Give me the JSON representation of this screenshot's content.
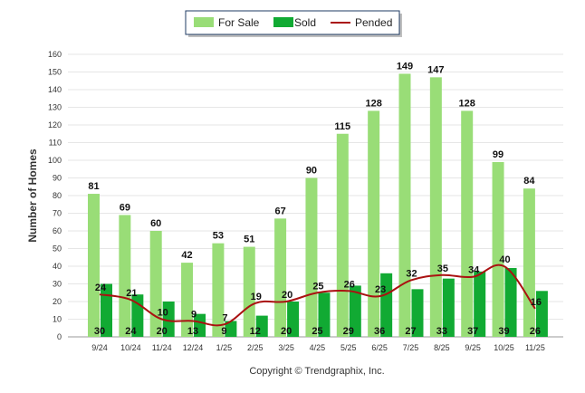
{
  "chart_data": {
    "type": "bar",
    "ylabel": "Number of Homes",
    "ylim": [
      0,
      160
    ],
    "ytick_step": 10,
    "grid": true,
    "legend_position": "top-center",
    "categories": [
      "9/24",
      "10/24",
      "11/24",
      "12/24",
      "1/25",
      "2/25",
      "3/25",
      "4/25",
      "5/25",
      "6/25",
      "7/25",
      "8/25",
      "9/25",
      "10/25",
      "11/25"
    ],
    "series": [
      {
        "name": "For Sale",
        "kind": "bar",
        "color": "#99dd77",
        "values": [
          81,
          69,
          60,
          42,
          53,
          51,
          67,
          90,
          115,
          128,
          149,
          147,
          128,
          99,
          84
        ]
      },
      {
        "name": "Sold",
        "kind": "bar",
        "color": "#11aa33",
        "values": [
          30,
          24,
          20,
          13,
          9,
          12,
          20,
          25,
          29,
          36,
          27,
          33,
          37,
          39,
          26
        ]
      },
      {
        "name": "Pended",
        "kind": "line",
        "color": "#aa1111",
        "values": [
          24,
          21,
          10,
          9,
          7,
          19,
          20,
          25,
          26,
          23,
          32,
          35,
          34,
          40,
          16
        ]
      }
    ]
  },
  "copyright": "Copyright © Trendgraphix, Inc."
}
